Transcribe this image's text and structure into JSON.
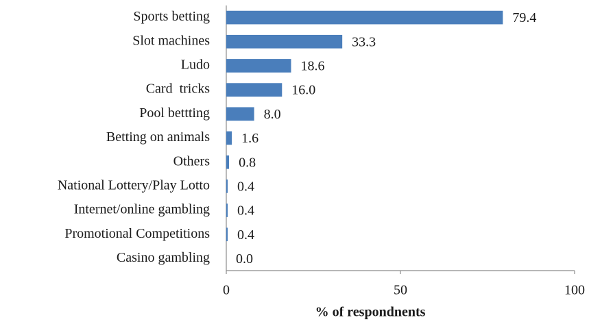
{
  "chart_data": {
    "type": "bar",
    "orientation": "horizontal",
    "categories": [
      "Sports betting",
      "Slot machines",
      "Ludo",
      "Card  tricks",
      "Pool bettting",
      "Betting on animals",
      "Others",
      "National Lottery/Play Lotto",
      "Internet/online gambling",
      "Promotional Competitions",
      "Casino gambling"
    ],
    "values": [
      79.4,
      33.3,
      18.6,
      16.0,
      8.0,
      1.6,
      0.8,
      0.4,
      0.4,
      0.4,
      0.0
    ],
    "value_labels": [
      "79.4",
      "33.3",
      "18.6",
      "16.0",
      "8.0",
      "1.6",
      "0.8",
      "0.4",
      "0.4",
      "0.4",
      "0.0"
    ],
    "color": "#4a7ebb",
    "xlabel": "% of respondnents",
    "xlim": [
      0,
      100
    ],
    "xticks": [
      0,
      50,
      100
    ],
    "grid": false
  }
}
